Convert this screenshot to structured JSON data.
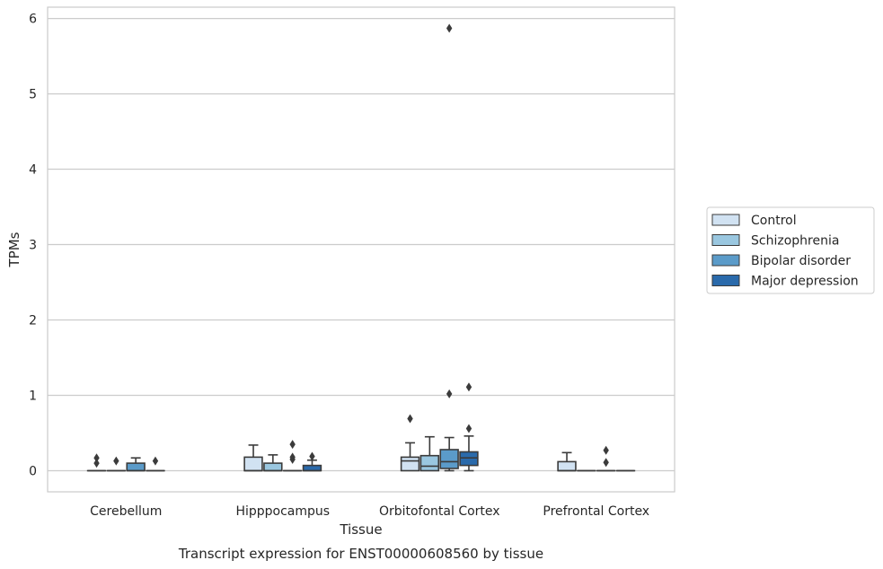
{
  "chart_data": {
    "type": "box",
    "caption": "Transcript expression for ENST00000608560 by tissue",
    "xlabel": "Tissue",
    "ylabel": "TPMs",
    "ylim": [
      -0.28,
      6.15
    ],
    "yticks": [
      0,
      1,
      2,
      3,
      4,
      5,
      6
    ],
    "grid": true,
    "legend_position": "right",
    "categories": [
      "Cerebellum",
      "Hipppocampus",
      "Orbitofontal Cortex",
      "Prefrontal Cortex"
    ],
    "series": [
      {
        "name": "Control",
        "color": "#d1e2f2",
        "boxes": [
          {
            "q1": 0,
            "median": 0,
            "q3": 0,
            "whislo": 0,
            "whishi": 0,
            "fliers": [
              0.1,
              0.17
            ]
          },
          {
            "q1": 0,
            "median": 0,
            "q3": 0.18,
            "whislo": 0,
            "whishi": 0.34,
            "fliers": []
          },
          {
            "q1": 0,
            "median": 0.13,
            "q3": 0.18,
            "whislo": 0,
            "whishi": 0.37,
            "fliers": [
              0.69
            ]
          },
          {
            "q1": 0,
            "median": 0,
            "q3": 0.12,
            "whislo": 0,
            "whishi": 0.24,
            "fliers": []
          }
        ]
      },
      {
        "name": "Schizophrenia",
        "color": "#9ac7e0",
        "boxes": [
          {
            "q1": 0,
            "median": 0,
            "q3": 0,
            "whislo": 0,
            "whishi": 0,
            "fliers": [
              0.13
            ]
          },
          {
            "q1": 0,
            "median": 0,
            "q3": 0.1,
            "whislo": 0,
            "whishi": 0.21,
            "fliers": []
          },
          {
            "q1": 0,
            "median": 0.06,
            "q3": 0.2,
            "whislo": 0,
            "whishi": 0.45,
            "fliers": []
          },
          {
            "q1": 0,
            "median": 0,
            "q3": 0,
            "whislo": 0,
            "whishi": 0,
            "fliers": []
          }
        ]
      },
      {
        "name": "Bipolar disorder",
        "color": "#5b9bc9",
        "boxes": [
          {
            "q1": 0,
            "median": 0,
            "q3": 0.1,
            "whislo": 0,
            "whishi": 0.17,
            "fliers": []
          },
          {
            "q1": 0,
            "median": 0,
            "q3": 0,
            "whislo": 0,
            "whishi": 0,
            "fliers": [
              0.15,
              0.18,
              0.35
            ]
          },
          {
            "q1": 0.03,
            "median": 0.12,
            "q3": 0.28,
            "whislo": 0,
            "whishi": 0.44,
            "fliers": [
              1.02,
              5.87
            ]
          },
          {
            "q1": 0,
            "median": 0,
            "q3": 0,
            "whislo": 0,
            "whishi": 0,
            "fliers": [
              0.11,
              0.27
            ]
          }
        ]
      },
      {
        "name": "Major depression",
        "color": "#2a6aab",
        "boxes": [
          {
            "q1": 0,
            "median": 0,
            "q3": 0,
            "whislo": 0,
            "whishi": 0,
            "fliers": [
              0.13
            ]
          },
          {
            "q1": 0,
            "median": 0,
            "q3": 0.07,
            "whislo": 0,
            "whishi": 0.14,
            "fliers": [
              0.19
            ]
          },
          {
            "q1": 0.07,
            "median": 0.17,
            "q3": 0.25,
            "whislo": 0,
            "whishi": 0.46,
            "fliers": [
              0.56,
              1.11
            ]
          },
          {
            "q1": 0,
            "median": 0,
            "q3": 0,
            "whislo": 0,
            "whishi": 0,
            "fliers": []
          }
        ]
      }
    ]
  }
}
